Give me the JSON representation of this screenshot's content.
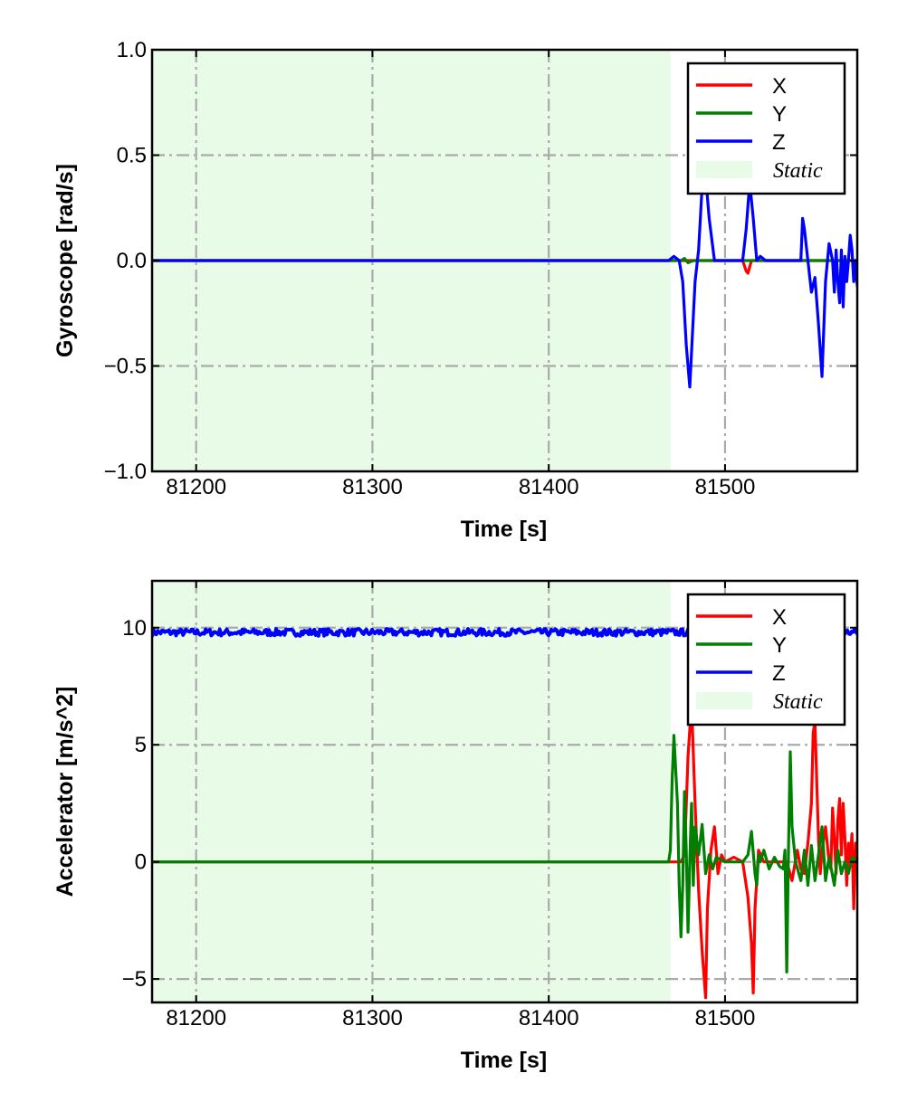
{
  "chart_data": [
    {
      "type": "line",
      "ylabel": "Gyroscope [rad/s]",
      "xlabel": "Time [s]",
      "xlim": [
        81175,
        81575
      ],
      "ylim": [
        -1.0,
        1.0
      ],
      "xticks": [
        81200,
        81300,
        81400,
        81500
      ],
      "xtick_labels": [
        "81200",
        "81300",
        "81400",
        "81500"
      ],
      "yticks": [
        1.0,
        0.5,
        0.0,
        -0.5,
        -1.0
      ],
      "ytick_labels": [
        "1.0",
        "0.5",
        "0.0",
        "−0.5",
        "−1.0"
      ],
      "grid": true,
      "legend_position": "top-right",
      "static_region": {
        "x": [
          81175,
          81469
        ],
        "label": "Static",
        "color": "#e8fbe6"
      },
      "legend": [
        {
          "label": "X",
          "color": "#ff0000"
        },
        {
          "label": "Y",
          "color": "#008000"
        },
        {
          "label": "Z",
          "color": "#0000ff"
        },
        {
          "label": "Static",
          "color": "#e8fbe6"
        }
      ],
      "series": [
        {
          "name": "X",
          "color": "#ff0000",
          "x": [
            81175,
            81469,
            81510,
            81512,
            81513,
            81515,
            81575
          ],
          "y": [
            0,
            0,
            0,
            -0.05,
            -0.06,
            0,
            0
          ]
        },
        {
          "name": "Y",
          "color": "#008000",
          "x": [
            81175,
            81475,
            81477,
            81479,
            81482,
            81575
          ],
          "y": [
            0,
            0,
            0.01,
            -0.01,
            0,
            0
          ]
        },
        {
          "name": "Z",
          "color": "#0000ff",
          "x": [
            81175,
            81468,
            81471,
            81474,
            81476,
            81478,
            81480,
            81483,
            81485,
            81487,
            81489,
            81491,
            81494,
            81510,
            81512,
            81514,
            81516,
            81518,
            81520,
            81523,
            81543,
            81544,
            81545,
            81547,
            81549,
            81551,
            81553,
            81555,
            81557,
            81559,
            81561,
            81562,
            81563,
            81564,
            81565,
            81566,
            81567,
            81568,
            81569,
            81570,
            81571,
            81572,
            81573,
            81574,
            81575
          ],
          "y": [
            0,
            0,
            0.02,
            0,
            -0.1,
            -0.4,
            -0.6,
            -0.1,
            0.05,
            0.35,
            0.4,
            0.2,
            0,
            0,
            0.15,
            0.37,
            0.2,
            0,
            0.02,
            0,
            0,
            0.2,
            0.15,
            0,
            -0.15,
            -0.08,
            -0.3,
            -0.55,
            -0.1,
            0.08,
            0,
            -0.15,
            0.05,
            -0.1,
            -0.2,
            0.05,
            -0.22,
            0.02,
            -0.1,
            0,
            0.12,
            0.05,
            -0.1,
            0,
            -0.12
          ]
        }
      ]
    },
    {
      "type": "line",
      "ylabel": "Accelerator [m/s^2]",
      "xlabel": "Time [s]",
      "xlim": [
        81175,
        81575
      ],
      "ylim": [
        -6,
        12
      ],
      "xticks": [
        81200,
        81300,
        81400,
        81500
      ],
      "xtick_labels": [
        "81200",
        "81300",
        "81400",
        "81500"
      ],
      "yticks": [
        10,
        5,
        0,
        -5
      ],
      "ytick_labels": [
        "10",
        "5",
        "0",
        "−5"
      ],
      "grid": true,
      "legend_position": "top-right",
      "static_region": {
        "x": [
          81175,
          81469
        ],
        "label": "Static",
        "color": "#e8fbe6"
      },
      "legend": [
        {
          "label": "X",
          "color": "#ff0000"
        },
        {
          "label": "Y",
          "color": "#008000"
        },
        {
          "label": "Z",
          "color": "#0000ff"
        },
        {
          "label": "Static",
          "color": "#e8fbe6"
        }
      ],
      "series": [
        {
          "name": "Z",
          "color": "#0000ff",
          "x": [
            81175,
            81575
          ],
          "y": [
            9.8,
            9.8
          ],
          "noise": 0.15
        },
        {
          "name": "X",
          "color": "#ff0000",
          "x": [
            81175,
            81475,
            81477,
            81479,
            81481,
            81483,
            81485,
            81487,
            81489,
            81490,
            81492,
            81494,
            81496,
            81498,
            81500,
            81505,
            81510,
            81513,
            81515,
            81516,
            81517,
            81519,
            81522,
            81535,
            81538,
            81541,
            81543,
            81545,
            81547,
            81549,
            81550,
            81551,
            81552,
            81553,
            81554,
            81555,
            81557,
            81559,
            81560,
            81561,
            81562,
            81563,
            81564,
            81565,
            81566,
            81567,
            81568,
            81569,
            81570,
            81571,
            81572,
            81573,
            81574,
            81575
          ],
          "y": [
            0,
            0,
            0.3,
            4.5,
            6.8,
            2.5,
            -1.2,
            -3.8,
            -5.8,
            -2,
            0.5,
            1.5,
            -0.5,
            0.3,
            0,
            0.2,
            0,
            -1.5,
            -3.5,
            -5.6,
            -2,
            0.5,
            0,
            0,
            -0.8,
            0.5,
            -0.3,
            -0.5,
            0.8,
            2.5,
            5.5,
            6,
            3.5,
            1,
            -0.5,
            0.5,
            1.5,
            0,
            -0.3,
            2.3,
            1,
            -0.5,
            1.8,
            2.7,
            0.3,
            2.5,
            1,
            -1,
            0.8,
            0,
            1.2,
            -2,
            0.8,
            0
          ]
        },
        {
          "name": "Y",
          "color": "#008000",
          "x": [
            81175,
            81468,
            81469,
            81470,
            81471,
            81473,
            81474,
            81475,
            81476,
            81477,
            81478,
            81479,
            81480,
            81481,
            81482,
            81483,
            81485,
            81487,
            81489,
            81491,
            81493,
            81495,
            81500,
            81510,
            81513,
            81515,
            81517,
            81518,
            81519,
            81520,
            81522,
            81525,
            81528,
            81531,
            81533,
            81534,
            81535,
            81536,
            81537,
            81538,
            81540,
            81543,
            81545,
            81547,
            81549,
            81551,
            81553,
            81555,
            81557,
            81559,
            81562,
            81564,
            81566,
            81568,
            81570,
            81572,
            81575
          ],
          "y": [
            0,
            0,
            0.5,
            3.5,
            5.4,
            2.5,
            -1,
            -3.2,
            -1,
            3,
            0.5,
            -3,
            0,
            2.5,
            -1,
            1.5,
            0.3,
            1.6,
            -0.5,
            0.3,
            -0.3,
            0.2,
            0,
            0,
            0.3,
            1.3,
            -0.5,
            -1,
            0.3,
            0,
            0.5,
            -0.3,
            0.2,
            -0.2,
            -0.3,
            0.5,
            -4.7,
            0.6,
            4.7,
            1.5,
            0,
            -0.8,
            0.5,
            -1,
            0.7,
            -0.8,
            0.3,
            1.5,
            -0.8,
            0.2,
            -1,
            0.5,
            -0.5,
            0,
            -0.5,
            0.2,
            0
          ]
        }
      ]
    }
  ]
}
